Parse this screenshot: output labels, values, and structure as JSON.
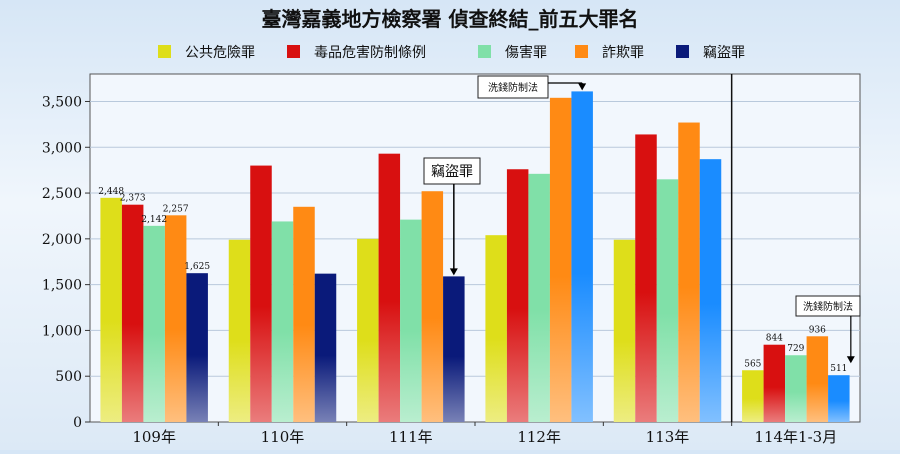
{
  "chart_data": {
    "type": "bar",
    "title": "臺灣嘉義地方檢察署 偵查終結_前五大罪名",
    "categories": [
      "109年",
      "110年",
      "111年",
      "112年",
      "113年",
      "114年1-3月"
    ],
    "ylim": [
      0,
      3800
    ],
    "yticks": [
      0,
      500,
      1000,
      1500,
      2000,
      2500,
      3000,
      3500
    ],
    "ytick_labels": [
      "0",
      "500",
      "1,000",
      "1,500",
      "2,000",
      "2,500",
      "3,000",
      "3,500"
    ],
    "grid": true,
    "legend_position": "top",
    "series": [
      {
        "name": "公共危險罪",
        "color": "#dede1a",
        "values": [
          2448,
          1990,
          2000,
          2040,
          1990,
          565
        ]
      },
      {
        "name": "毒品危害防制條例",
        "color": "#d81010",
        "values": [
          2373,
          2800,
          2930,
          2760,
          3140,
          844
        ]
      },
      {
        "name": "傷害罪",
        "color": "#80e0a8",
        "values": [
          2142,
          2190,
          2210,
          2710,
          2650,
          729
        ]
      },
      {
        "name": "詐欺罪",
        "color": "#ff8a14",
        "values": [
          2257,
          2350,
          2520,
          3540,
          3270,
          936
        ]
      },
      {
        "name": "竊盜罪",
        "color": "#0a1a7a",
        "values": [
          1625,
          1620,
          1590,
          3610,
          2870,
          511
        ]
      }
    ],
    "data_labels": [
      {
        "category": 0,
        "series": 0,
        "text": "2,448"
      },
      {
        "category": 0,
        "series": 1,
        "text": "2,373"
      },
      {
        "category": 0,
        "series": 2,
        "text": "2,142"
      },
      {
        "category": 0,
        "series": 3,
        "text": "2,257"
      },
      {
        "category": 0,
        "series": 4,
        "text": "1,625"
      },
      {
        "category": 5,
        "series": 0,
        "text": "565"
      },
      {
        "category": 5,
        "series": 1,
        "text": "844"
      },
      {
        "category": 5,
        "series": 2,
        "text": "729"
      },
      {
        "category": 5,
        "series": 3,
        "text": "936"
      },
      {
        "category": 5,
        "series": 4,
        "text": "511"
      }
    ],
    "highlight_color": "#1a8cff",
    "highlight_bars": [
      {
        "category": 3,
        "series": 4
      },
      {
        "category": 4,
        "series": 4
      },
      {
        "category": 5,
        "series": 4
      }
    ],
    "divider_after_category": 4,
    "annotations": [
      {
        "text": "洗錢防制法",
        "category": 3,
        "series": 4
      },
      {
        "text": "竊盜罪",
        "category": 2,
        "series": 4
      },
      {
        "text": "洗錢防制法",
        "category": 5,
        "series": 4
      }
    ]
  }
}
